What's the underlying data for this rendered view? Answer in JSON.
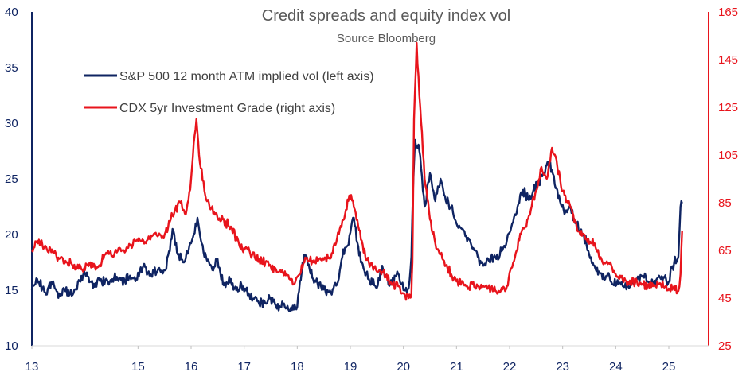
{
  "chart_data": {
    "type": "line",
    "title": "Credit spreads and equity index vol",
    "subtitle": "Source Bloomberg",
    "x_ticks": [
      "13",
      "15",
      "16",
      "17",
      "18",
      "19",
      "20",
      "21",
      "22",
      "23",
      "24",
      "25"
    ],
    "x_tick_years": [
      2013,
      2015,
      2016,
      2017,
      2018,
      2019,
      2020,
      2021,
      2022,
      2023,
      2024,
      2025
    ],
    "xlim": [
      2013.0,
      2025.75
    ],
    "y_left": {
      "label": "",
      "ylim": [
        10,
        40
      ],
      "ticks": [
        10,
        15,
        20,
        25,
        30,
        35,
        40
      ],
      "color": "#0f2462"
    },
    "y_right": {
      "label": "",
      "ylim": [
        25,
        165
      ],
      "ticks": [
        25,
        45,
        65,
        85,
        105,
        125,
        145,
        165
      ],
      "color": "#e8141c"
    },
    "legend": {
      "position": "top-left"
    },
    "series": [
      {
        "name": "S&P 500 12 month ATM implied vol (left axis)",
        "axis": "left",
        "color": "#0f2462",
        "x": [
          2013.0,
          2013.1,
          2013.25,
          2013.4,
          2013.5,
          2013.6,
          2013.75,
          2013.9,
          2014.0,
          2014.15,
          2014.3,
          2014.45,
          2014.6,
          2014.75,
          2014.85,
          2014.95,
          2015.1,
          2015.25,
          2015.4,
          2015.5,
          2015.6,
          2015.65,
          2015.75,
          2015.85,
          2015.95,
          2016.05,
          2016.12,
          2016.25,
          2016.4,
          2016.5,
          2016.6,
          2016.75,
          2016.85,
          2016.95,
          2017.1,
          2017.25,
          2017.4,
          2017.5,
          2017.6,
          2017.75,
          2017.9,
          2018.0,
          2018.1,
          2018.15,
          2018.3,
          2018.45,
          2018.6,
          2018.75,
          2018.85,
          2018.95,
          2019.05,
          2019.2,
          2019.35,
          2019.5,
          2019.6,
          2019.75,
          2019.9,
          2020.0,
          2020.1,
          2020.15,
          2020.18,
          2020.22,
          2020.3,
          2020.4,
          2020.5,
          2020.6,
          2020.7,
          2020.8,
          2020.9,
          2021.0,
          2021.1,
          2021.25,
          2021.4,
          2021.5,
          2021.65,
          2021.75,
          2021.85,
          2021.95,
          2022.05,
          2022.15,
          2022.25,
          2022.35,
          2022.45,
          2022.55,
          2022.65,
          2022.75,
          2022.85,
          2022.95,
          2023.05,
          2023.15,
          2023.25,
          2023.4,
          2023.5,
          2023.6,
          2023.75,
          2023.85,
          2023.95,
          2024.1,
          2024.25,
          2024.4,
          2024.55,
          2024.6,
          2024.7,
          2024.85,
          2025.0,
          2025.1,
          2025.18,
          2025.22,
          2025.25
        ],
        "y": [
          15.0,
          16.0,
          14.8,
          15.8,
          14.3,
          15.2,
          14.5,
          15.8,
          16.5,
          15.2,
          16.0,
          15.5,
          16.2,
          15.8,
          16.3,
          15.8,
          17.2,
          16.3,
          17.0,
          16.8,
          18.5,
          20.5,
          18.2,
          17.5,
          18.5,
          20.0,
          21.5,
          18.0,
          16.8,
          17.8,
          15.5,
          16.0,
          15.0,
          15.5,
          14.5,
          14.0,
          13.8,
          14.3,
          13.6,
          13.8,
          13.2,
          13.5,
          17.5,
          18.2,
          16.0,
          15.3,
          14.8,
          15.5,
          18.0,
          19.0,
          21.5,
          17.5,
          16.0,
          15.2,
          17.2,
          15.5,
          16.5,
          15.0,
          15.2,
          18.0,
          24.0,
          28.5,
          27.5,
          22.5,
          25.5,
          23.0,
          25.0,
          23.0,
          22.5,
          21.0,
          20.5,
          19.5,
          18.0,
          17.2,
          18.0,
          17.8,
          18.5,
          19.5,
          21.0,
          22.5,
          24.0,
          23.2,
          24.0,
          24.5,
          25.5,
          26.5,
          24.5,
          23.0,
          22.0,
          22.5,
          21.0,
          20.0,
          18.2,
          17.2,
          16.0,
          16.5,
          15.5,
          15.5,
          15.2,
          16.0,
          16.5,
          15.8,
          15.5,
          16.0,
          15.8,
          17.5,
          18.0,
          22.5,
          22.8
        ]
      },
      {
        "name": "CDX 5yr Investment Grade (right axis)",
        "axis": "right",
        "color": "#e8141c",
        "x": [
          2013.0,
          2013.1,
          2013.25,
          2013.4,
          2013.5,
          2013.65,
          2013.8,
          2013.95,
          2014.1,
          2014.25,
          2014.4,
          2014.55,
          2014.7,
          2014.85,
          2015.0,
          2015.15,
          2015.3,
          2015.45,
          2015.6,
          2015.7,
          2015.8,
          2015.9,
          2016.0,
          2016.05,
          2016.1,
          2016.15,
          2016.25,
          2016.35,
          2016.45,
          2016.6,
          2016.75,
          2016.9,
          2017.0,
          2017.2,
          2017.4,
          2017.6,
          2017.8,
          2017.95,
          2018.05,
          2018.15,
          2018.3,
          2018.45,
          2018.6,
          2018.75,
          2018.9,
          2018.98,
          2019.05,
          2019.15,
          2019.3,
          2019.45,
          2019.6,
          2019.75,
          2019.9,
          2020.0,
          2020.1,
          2020.15,
          2020.17,
          2020.2,
          2020.25,
          2020.3,
          2020.4,
          2020.5,
          2020.6,
          2020.75,
          2020.9,
          2021.0,
          2021.2,
          2021.4,
          2021.6,
          2021.8,
          2021.95,
          2022.1,
          2022.2,
          2022.3,
          2022.4,
          2022.5,
          2022.6,
          2022.7,
          2022.8,
          2022.9,
          2023.0,
          2023.1,
          2023.2,
          2023.3,
          2023.45,
          2023.6,
          2023.75,
          2023.9,
          2024.0,
          2024.2,
          2024.4,
          2024.6,
          2024.8,
          2025.0,
          2025.1,
          2025.18,
          2025.22,
          2025.25
        ],
        "y": [
          65.0,
          69.0,
          67.0,
          64.0,
          62.0,
          60.0,
          59.0,
          57.0,
          60.0,
          58.0,
          64.0,
          63.0,
          65.0,
          67.0,
          69.0,
          68.0,
          72.0,
          70.0,
          77.0,
          82.0,
          85.0,
          80.0,
          95.0,
          110.0,
          120.0,
          105.0,
          90.0,
          83.0,
          80.0,
          78.0,
          75.0,
          68.0,
          66.0,
          62.0,
          60.0,
          57.0,
          55.0,
          51.0,
          55.0,
          62.0,
          60.0,
          61.0,
          62.0,
          70.0,
          80.0,
          88.0,
          86.0,
          75.0,
          61.0,
          58.0,
          56.0,
          52.0,
          50.0,
          47.0,
          45.0,
          46.0,
          60.0,
          120.0,
          152.0,
          130.0,
          95.0,
          78.0,
          68.0,
          61.0,
          55.0,
          52.0,
          50.0,
          50.0,
          49.0,
          48.0,
          50.0,
          62.0,
          72.0,
          75.0,
          82.0,
          90.0,
          100.0,
          95.0,
          108.0,
          100.0,
          90.0,
          85.0,
          80.0,
          73.0,
          70.0,
          68.0,
          60.0,
          60.0,
          55.0,
          52.0,
          52.0,
          50.0,
          51.0,
          49.0,
          50.0,
          48.0,
          55.0,
          73.0
        ]
      }
    ]
  }
}
